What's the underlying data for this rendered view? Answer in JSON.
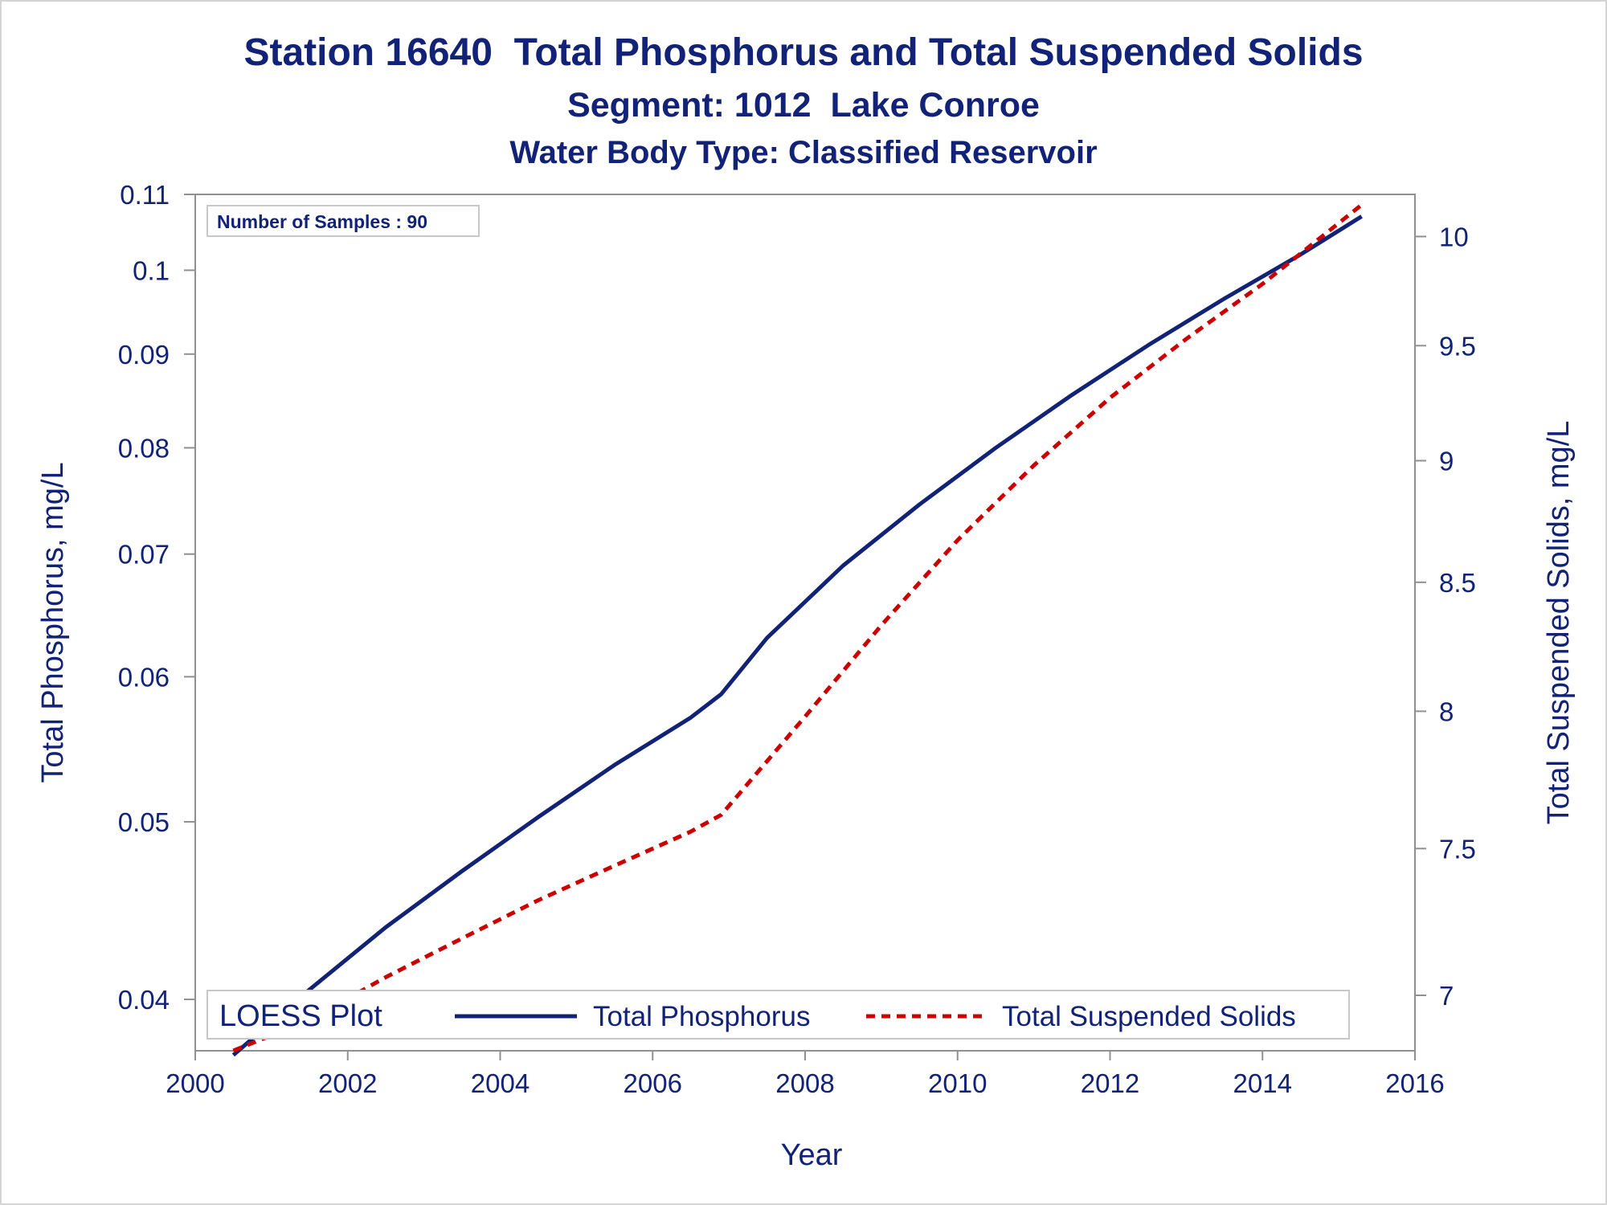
{
  "title": "Station 16640  Total Phosphorus and Total Suspended Solids",
  "subtitle1": "Segment: 1012  Lake Conroe",
  "subtitle2": "Water Body Type: Classified Reservoir",
  "inset": "Number of Samples : 90",
  "legend": {
    "heading": "LOESS Plot",
    "tp_label": "Total Phosphorus",
    "tss_label": "Total Suspended Solids"
  },
  "colors": {
    "tp": "#112277",
    "tss": "#cc0000",
    "axis": "#909090",
    "text": "#112277"
  },
  "chart_data": {
    "type": "line",
    "xlabel": "Year",
    "ylabel": "Total Phosphorus, mg/L",
    "y2label": "Total Suspended Solids, mg/L",
    "xlim": [
      2000,
      2016
    ],
    "ylim": [
      0.0375,
      0.11
    ],
    "y_scale": "log",
    "y2lim": [
      6.82,
      10.2
    ],
    "y2_scale": "log",
    "x_ticks": [
      "2000",
      "2002",
      "2004",
      "2006",
      "2008",
      "2010",
      "2012",
      "2014",
      "2016"
    ],
    "y_ticks": [
      "0.04",
      "0.05",
      "0.06",
      "0.07",
      "0.08",
      "0.09",
      "0.1",
      "0.11"
    ],
    "y2_ticks": [
      "7",
      "7.5",
      "8",
      "8.5",
      "9",
      "9.5",
      "10"
    ],
    "legend_position": "bottom-inside",
    "series": [
      {
        "name": "Total Phosphorus",
        "axis": "left",
        "style": "solid",
        "x": [
          2000.5,
          2001.5,
          2002.5,
          2003.5,
          2004.5,
          2005.5,
          2006.5,
          2006.9,
          2007.5,
          2008.5,
          2009.5,
          2010.5,
          2011.5,
          2012.5,
          2013.5,
          2014.5,
          2015.3
        ],
        "y": [
          0.0373,
          0.0405,
          0.0438,
          0.047,
          0.0503,
          0.0537,
          0.057,
          0.0587,
          0.063,
          0.069,
          0.0745,
          0.08,
          0.0855,
          0.091,
          0.0965,
          0.102,
          0.107
        ]
      },
      {
        "name": "Total Suspended Solids",
        "axis": "right",
        "style": "dashed",
        "x": [
          2000.5,
          2001.5,
          2002.5,
          2003.5,
          2004.5,
          2005.5,
          2006.5,
          2006.9,
          2008,
          2009,
          2010,
          2011,
          2012,
          2013,
          2014,
          2015.3
        ],
        "y": [
          6.82,
          6.92,
          7.06,
          7.19,
          7.32,
          7.44,
          7.56,
          7.62,
          7.98,
          8.33,
          8.67,
          8.98,
          9.27,
          9.53,
          9.78,
          10.15
        ]
      }
    ]
  }
}
